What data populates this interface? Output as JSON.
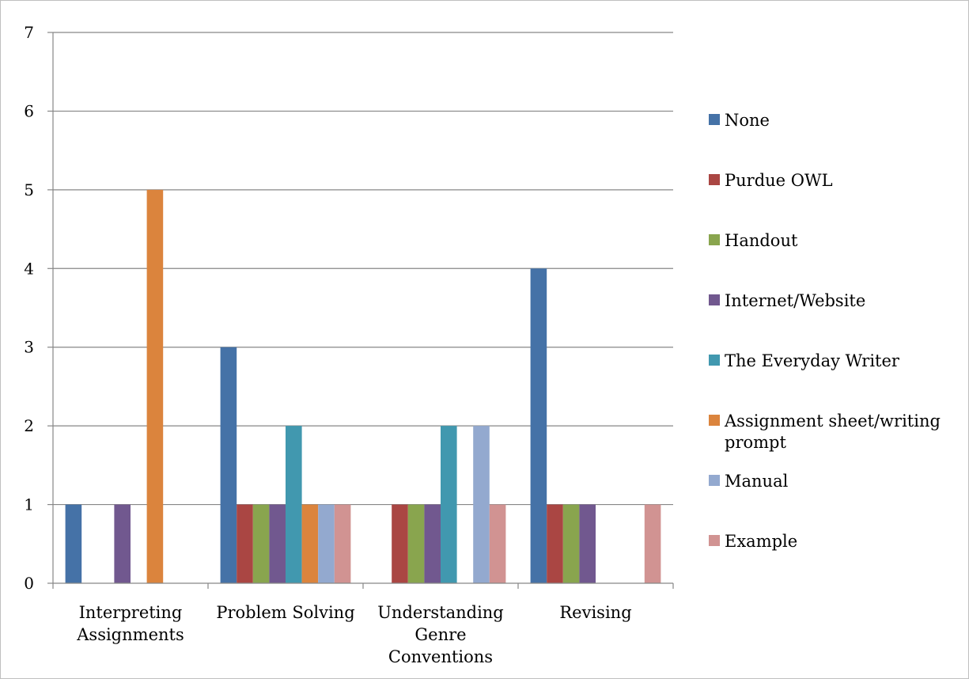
{
  "chart_data": {
    "type": "bar",
    "title": "",
    "xlabel": "",
    "ylabel": "",
    "ylim": [
      0,
      7
    ],
    "yticks": [
      0,
      1,
      2,
      3,
      4,
      5,
      6,
      7
    ],
    "grid": true,
    "legend_position": "right",
    "categories": [
      [
        "Interpreting",
        "Assignments"
      ],
      [
        "Problem Solving"
      ],
      [
        "Understanding",
        "Genre",
        "Conventions"
      ],
      [
        "Revising"
      ]
    ],
    "series": [
      {
        "name": "None",
        "color": "#4572a7",
        "values": [
          1,
          3,
          0,
          4
        ]
      },
      {
        "name": "Purdue OWL",
        "color": "#aa4643",
        "values": [
          0,
          1,
          1,
          1
        ]
      },
      {
        "name": "Handout",
        "color": "#89a54e",
        "values": [
          0,
          1,
          1,
          1
        ]
      },
      {
        "name": "Internet/Website",
        "color": "#71588f",
        "values": [
          1,
          1,
          1,
          1
        ]
      },
      {
        "name": "The Everyday Writer",
        "color": "#4198af",
        "values": [
          0,
          2,
          2,
          0
        ]
      },
      {
        "name": "Assignment sheet/writing prompt",
        "legend_lines": [
          "Assignment sheet/writing",
          "prompt"
        ],
        "color": "#db843d",
        "values": [
          5,
          1,
          0,
          0
        ]
      },
      {
        "name": "Manual",
        "color": "#93a9cf",
        "values": [
          0,
          1,
          2,
          0
        ]
      },
      {
        "name": "Example",
        "color": "#d19392",
        "values": [
          0,
          1,
          1,
          1
        ]
      }
    ]
  }
}
